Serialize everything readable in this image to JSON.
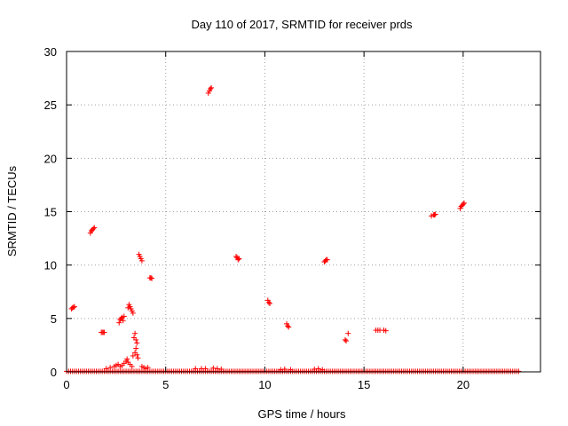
{
  "chart_data": {
    "type": "scatter",
    "title": "Day 110 of 2017, SRMTID for receiver prds",
    "xlabel": "GPS time / hours",
    "ylabel": "SRMTID / TECUs",
    "xlim": [
      0,
      23.9
    ],
    "ylim": [
      0,
      30
    ],
    "xticks": [
      0,
      5,
      10,
      15,
      20
    ],
    "yticks": [
      0,
      5,
      10,
      15,
      20,
      25,
      30
    ],
    "grid": true,
    "marker": "plus",
    "colors": {
      "series": "#ff0000",
      "axis": "#000000",
      "grid": "#a0a0a0"
    },
    "series": [
      {
        "points": [
          [
            0.25,
            5.9
          ],
          [
            0.3,
            6.0
          ],
          [
            0.35,
            6.05
          ],
          [
            0.4,
            6.1
          ],
          [
            1.2,
            13.0
          ],
          [
            1.25,
            13.2
          ],
          [
            1.3,
            13.3
          ],
          [
            1.35,
            13.4
          ],
          [
            1.4,
            13.5
          ],
          [
            1.75,
            3.7
          ],
          [
            1.8,
            3.7
          ],
          [
            1.85,
            3.7
          ],
          [
            1.9,
            3.7
          ],
          [
            2.65,
            4.6
          ],
          [
            2.7,
            4.9
          ],
          [
            2.75,
            5.0
          ],
          [
            2.8,
            5.1
          ],
          [
            2.85,
            4.8
          ],
          [
            2.9,
            5.2
          ],
          [
            3.1,
            6.0
          ],
          [
            3.15,
            6.3
          ],
          [
            3.2,
            6.1
          ],
          [
            3.25,
            5.9
          ],
          [
            3.3,
            5.7
          ],
          [
            3.35,
            5.5
          ],
          [
            3.4,
            3.2
          ],
          [
            3.45,
            3.6
          ],
          [
            3.5,
            3.0
          ],
          [
            3.55,
            2.7
          ],
          [
            3.5,
            2.2
          ],
          [
            3.45,
            1.8
          ],
          [
            3.35,
            1.5
          ],
          [
            3.55,
            1.6
          ],
          [
            3.6,
            1.3
          ],
          [
            3.65,
            11.0
          ],
          [
            3.7,
            10.8
          ],
          [
            3.75,
            10.6
          ],
          [
            3.8,
            10.4
          ],
          [
            4.2,
            8.8
          ],
          [
            4.25,
            8.8
          ],
          [
            4.3,
            8.75
          ],
          [
            7.15,
            26.1
          ],
          [
            7.2,
            26.3
          ],
          [
            7.25,
            26.5
          ],
          [
            7.3,
            26.6
          ],
          [
            8.55,
            10.8
          ],
          [
            8.6,
            10.7
          ],
          [
            8.65,
            10.5
          ],
          [
            8.7,
            10.6
          ],
          [
            10.15,
            6.7
          ],
          [
            10.2,
            6.5
          ],
          [
            10.25,
            6.4
          ],
          [
            11.1,
            4.5
          ],
          [
            11.15,
            4.3
          ],
          [
            11.2,
            4.2
          ],
          [
            13.0,
            10.3
          ],
          [
            13.05,
            10.4
          ],
          [
            13.1,
            10.5
          ],
          [
            13.15,
            10.5
          ],
          [
            14.05,
            3.0
          ],
          [
            14.1,
            2.9
          ],
          [
            14.2,
            3.6
          ],
          [
            15.6,
            3.9
          ],
          [
            15.7,
            3.9
          ],
          [
            15.8,
            3.9
          ],
          [
            16.0,
            3.9
          ],
          [
            16.1,
            3.85
          ],
          [
            18.4,
            14.6
          ],
          [
            18.5,
            14.7
          ],
          [
            18.55,
            14.7
          ],
          [
            18.6,
            14.75
          ],
          [
            19.85,
            15.3
          ],
          [
            19.9,
            15.5
          ],
          [
            19.95,
            15.6
          ],
          [
            20.0,
            15.7
          ],
          [
            20.05,
            15.8
          ],
          [
            2.4,
            0.5
          ],
          [
            2.5,
            0.6
          ],
          [
            2.6,
            0.7
          ],
          [
            2.7,
            0.5
          ],
          [
            2.8,
            0.6
          ],
          [
            2.9,
            0.8
          ],
          [
            3.0,
            1.0
          ],
          [
            3.05,
            1.2
          ],
          [
            3.1,
            0.9
          ],
          [
            3.2,
            0.7
          ],
          [
            3.3,
            0.5
          ],
          [
            2.0,
            0.3
          ],
          [
            2.2,
            0.4
          ],
          [
            3.8,
            0.5
          ],
          [
            3.9,
            0.4
          ],
          [
            4.0,
            0.3
          ],
          [
            4.1,
            0.4
          ],
          [
            6.5,
            0.3
          ],
          [
            6.8,
            0.3
          ],
          [
            7.0,
            0.3
          ],
          [
            7.4,
            0.35
          ],
          [
            7.6,
            0.3
          ],
          [
            7.8,
            0.25
          ],
          [
            10.8,
            0.2
          ],
          [
            11.0,
            0.25
          ],
          [
            11.3,
            0.2
          ],
          [
            12.5,
            0.25
          ],
          [
            12.7,
            0.3
          ],
          [
            12.9,
            0.2
          ]
        ]
      }
    ],
    "baseline_band": {
      "x_start": 0.0,
      "x_end": 22.8,
      "y": 0.05
    }
  }
}
